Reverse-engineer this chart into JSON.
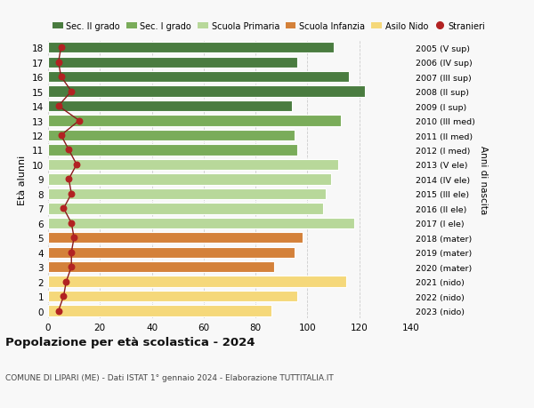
{
  "ages": [
    18,
    17,
    16,
    15,
    14,
    13,
    12,
    11,
    10,
    9,
    8,
    7,
    6,
    5,
    4,
    3,
    2,
    1,
    0
  ],
  "bar_values": [
    110,
    96,
    116,
    122,
    94,
    113,
    95,
    96,
    112,
    109,
    107,
    106,
    118,
    98,
    95,
    87,
    115,
    96,
    86
  ],
  "stranieri_values": [
    5,
    4,
    5,
    9,
    4,
    12,
    5,
    8,
    11,
    8,
    9,
    6,
    9,
    10,
    9,
    9,
    7,
    6,
    4
  ],
  "right_labels": [
    "2005 (V sup)",
    "2006 (IV sup)",
    "2007 (III sup)",
    "2008 (II sup)",
    "2009 (I sup)",
    "2010 (III med)",
    "2011 (II med)",
    "2012 (I med)",
    "2013 (V ele)",
    "2014 (IV ele)",
    "2015 (III ele)",
    "2016 (II ele)",
    "2017 (I ele)",
    "2018 (mater)",
    "2019 (mater)",
    "2020 (mater)",
    "2021 (nido)",
    "2022 (nido)",
    "2023 (nido)"
  ],
  "bar_colors": [
    "#4a7c40",
    "#4a7c40",
    "#4a7c40",
    "#4a7c40",
    "#4a7c40",
    "#7aac5a",
    "#7aac5a",
    "#7aac5a",
    "#b8d89a",
    "#b8d89a",
    "#b8d89a",
    "#b8d89a",
    "#b8d89a",
    "#d4813a",
    "#d4813a",
    "#d4813a",
    "#f5d87a",
    "#f5d87a",
    "#f5d87a"
  ],
  "legend_labels": [
    "Sec. II grado",
    "Sec. I grado",
    "Scuola Primaria",
    "Scuola Infanzia",
    "Asilo Nido",
    "Stranieri"
  ],
  "legend_colors": [
    "#4a7c40",
    "#7aac5a",
    "#b8d89a",
    "#d4813a",
    "#f5d87a",
    "#b22222"
  ],
  "stranieri_color": "#b22222",
  "stranieri_line_color": "#8b1a1a",
  "ylabel": "Età alunni",
  "right_ylabel": "Anni di nascita",
  "title": "Popolazione per età scolastica - 2024",
  "subtitle": "COMUNE DI LIPARI (ME) - Dati ISTAT 1° gennaio 2024 - Elaborazione TUTTITALIA.IT",
  "xlim": [
    0,
    140
  ],
  "xticks": [
    0,
    20,
    40,
    60,
    80,
    100,
    120,
    140
  ],
  "bg_color": "#f8f8f8",
  "grid_color": "#cccccc"
}
